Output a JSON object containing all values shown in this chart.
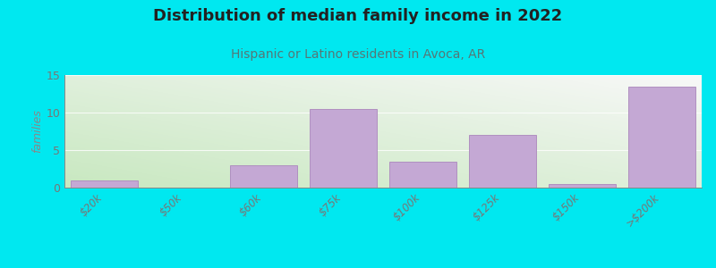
{
  "title": "Distribution of median family income in 2022",
  "subtitle": "Hispanic or Latino residents in Avoca, AR",
  "categories": [
    "$20k",
    "$50k",
    "$60k",
    "$75k",
    "$100k",
    "$125k",
    "$150k",
    ">$200k"
  ],
  "values": [
    1,
    0,
    3,
    10.5,
    3.5,
    7,
    0.5,
    13.5
  ],
  "bar_color": "#c4a8d4",
  "bar_edge_color": "#b090c0",
  "background_outer": "#00e8f0",
  "background_inner_bottom_left": "#c8e8c0",
  "background_inner_top_right": "#f5f5f5",
  "title_fontsize": 13,
  "subtitle_fontsize": 10,
  "ylabel": "families",
  "ylim": [
    0,
    15
  ],
  "yticks": [
    0,
    5,
    10,
    15
  ],
  "title_color": "#222222",
  "subtitle_color": "#557777",
  "axis_color": "#888888",
  "tick_label_color": "#777777",
  "grid_color": "#e0e0e0"
}
